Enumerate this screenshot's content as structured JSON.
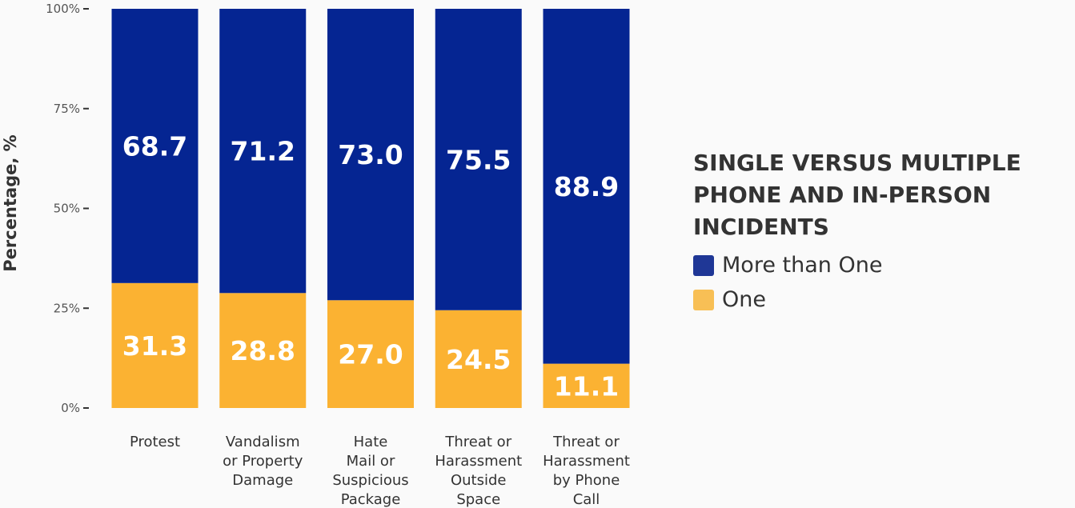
{
  "chart_data": {
    "type": "bar",
    "stacked": true,
    "categories": [
      "Protest",
      "Vandalism\nor Property\nDamage",
      "Hate\nMail or\nSuspicious\nPackage",
      "Threat or\nHarassment\nOutside\nSpace",
      "Threat or\nHarassment\nby Phone\nCall"
    ],
    "series": [
      {
        "name": "One",
        "values": [
          31.3,
          28.8,
          27.0,
          24.5,
          11.1
        ],
        "labels": [
          "31.3",
          "28.8",
          "27.0",
          "24.5",
          "11.1"
        ],
        "color": "#fbb232"
      },
      {
        "name": "More than One",
        "values": [
          68.7,
          71.2,
          73.0,
          75.5,
          88.9
        ],
        "labels": [
          "68.7",
          "71.2",
          "73.0",
          "75.5",
          "88.9"
        ],
        "color": "#052592"
      }
    ],
    "ylabel": "Percentage, %",
    "ylim": [
      0,
      100
    ],
    "yticks": [
      0,
      25,
      50,
      75,
      100
    ],
    "ytick_labels": [
      "0%",
      "25%",
      "50%",
      "75%",
      "100%"
    ],
    "grid": false,
    "legend_placement": "right"
  },
  "legend": {
    "title": "SINGLE VERSUS MULTIPLE\nPHONE AND IN-PERSON\nINCIDENTS",
    "items": [
      {
        "label": "More than One",
        "color": "#1f3796"
      },
      {
        "label": "One",
        "color": "#f8bf55"
      }
    ]
  }
}
